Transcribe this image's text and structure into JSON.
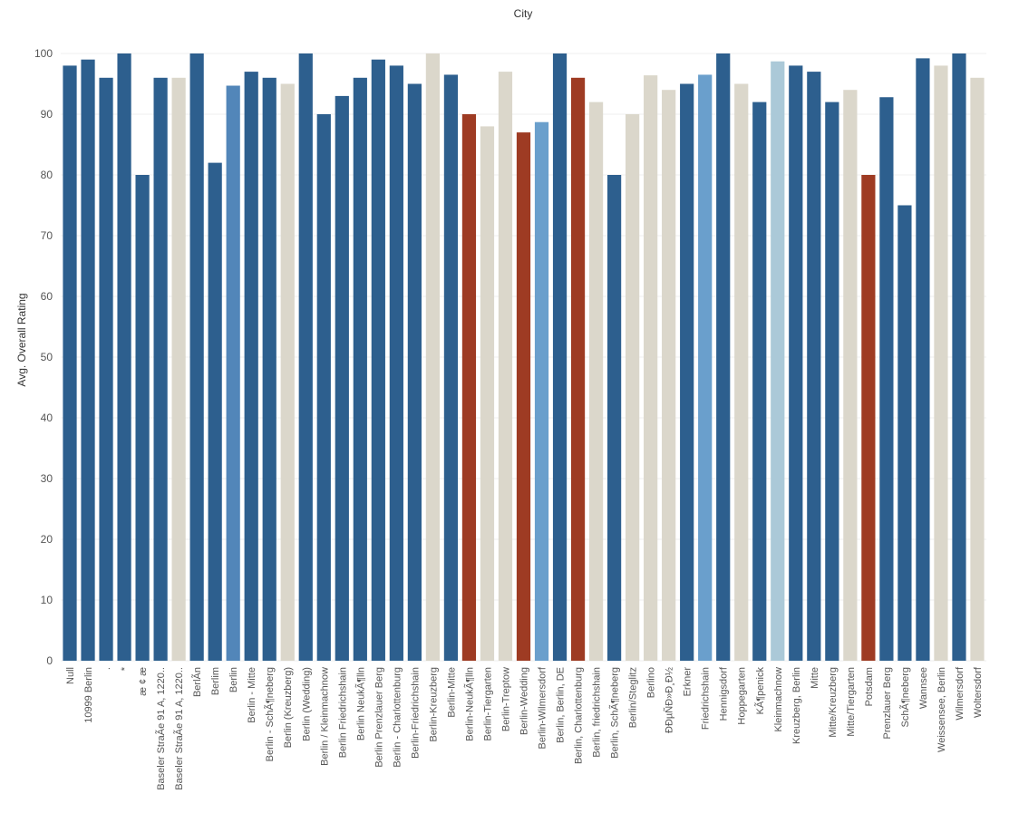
{
  "chart_data": {
    "type": "bar",
    "title": "City",
    "xlabel": "",
    "ylabel": "Avg. Overall Rating",
    "ylim": [
      0,
      100
    ],
    "yticks": [
      0,
      10,
      20,
      30,
      40,
      50,
      60,
      70,
      80,
      90,
      100
    ],
    "grid": true,
    "colors": {
      "dark_blue": "#2d5f8e",
      "mid_blue": "#5286b9",
      "light_blue": "#6a9fcc",
      "pale_blue": "#abc9d8",
      "beige": "#dbd7cb",
      "rust": "#9e3b23"
    },
    "bars": [
      {
        "label": "Null",
        "value": 98,
        "color": "dark_blue"
      },
      {
        "label": "10999 Berlin",
        "value": 99,
        "color": "dark_blue"
      },
      {
        "label": ".",
        "value": 96,
        "color": "dark_blue"
      },
      {
        "label": "*",
        "value": 100,
        "color": "dark_blue"
      },
      {
        "label": "æ ¢ æ",
        "value": 80,
        "color": "dark_blue"
      },
      {
        "label": "Baseler StraÃe 91 A, 1220..",
        "value": 96,
        "color": "dark_blue"
      },
      {
        "label": "Baseler StraÃe 91 A, 1220..",
        "value": 96,
        "color": "beige"
      },
      {
        "label": "BerlÃn",
        "value": 100,
        "color": "dark_blue"
      },
      {
        "label": "Berlim",
        "value": 82,
        "color": "dark_blue"
      },
      {
        "label": "Berlin",
        "value": 94.7,
        "color": "mid_blue"
      },
      {
        "label": "Berlin - Mitte",
        "value": 97,
        "color": "dark_blue"
      },
      {
        "label": "Berlin - SchÃ¶neberg",
        "value": 96,
        "color": "dark_blue"
      },
      {
        "label": "Berlin (Kreuzberg)",
        "value": 95,
        "color": "beige"
      },
      {
        "label": "Berlin (Wedding)",
        "value": 100,
        "color": "dark_blue"
      },
      {
        "label": "Berlin / Kleinmachnow",
        "value": 90,
        "color": "dark_blue"
      },
      {
        "label": "Berlin Friedrichshain",
        "value": 93,
        "color": "dark_blue"
      },
      {
        "label": "Berlin NeukÃ¶lln",
        "value": 96,
        "color": "dark_blue"
      },
      {
        "label": "Berlin Prenzlauer Berg",
        "value": 99,
        "color": "dark_blue"
      },
      {
        "label": "Berlin - Charlottenburg",
        "value": 98,
        "color": "dark_blue"
      },
      {
        "label": "Berlin-Friedrichshain",
        "value": 95,
        "color": "dark_blue"
      },
      {
        "label": "Berlin-Kreuzberg",
        "value": 100,
        "color": "beige"
      },
      {
        "label": "Berlin-Mitte",
        "value": 96.5,
        "color": "dark_blue"
      },
      {
        "label": "Berlin-NeukÃ¶lln",
        "value": 90,
        "color": "rust"
      },
      {
        "label": "Berlin-Tiergarten",
        "value": 88,
        "color": "beige"
      },
      {
        "label": "Berlin-Treptow",
        "value": 97,
        "color": "beige"
      },
      {
        "label": "Berlin-Wedding",
        "value": 87,
        "color": "rust"
      },
      {
        "label": "Berlin-Wilmersdorf",
        "value": 88.7,
        "color": "light_blue"
      },
      {
        "label": "Berlin, Berlin, DE",
        "value": 100,
        "color": "dark_blue"
      },
      {
        "label": "Berlin, Charlottenburg",
        "value": 96,
        "color": "rust"
      },
      {
        "label": "Berlin, friedrichshain",
        "value": 92,
        "color": "beige"
      },
      {
        "label": "Berlin, SchÃ¶neberg",
        "value": 80,
        "color": "dark_blue"
      },
      {
        "label": "Berlin/Steglitz",
        "value": 90,
        "color": "beige"
      },
      {
        "label": "Berlino",
        "value": 96.4,
        "color": "beige"
      },
      {
        "label": "ÐÐµÑÐ»Ð¸Ð½",
        "value": 94,
        "color": "beige"
      },
      {
        "label": "Erkner",
        "value": 95,
        "color": "dark_blue"
      },
      {
        "label": "Friedrichshain",
        "value": 96.5,
        "color": "light_blue"
      },
      {
        "label": "Hennigsdorf",
        "value": 100,
        "color": "dark_blue"
      },
      {
        "label": "Hoppegarten",
        "value": 95,
        "color": "beige"
      },
      {
        "label": "KÃ¶penick",
        "value": 92,
        "color": "dark_blue"
      },
      {
        "label": "Kleinmachnow",
        "value": 98.7,
        "color": "pale_blue"
      },
      {
        "label": "Kreuzberg, Berlin",
        "value": 98,
        "color": "dark_blue"
      },
      {
        "label": "Mitte",
        "value": 97,
        "color": "dark_blue"
      },
      {
        "label": "Mitte/Kreuzberg",
        "value": 92,
        "color": "dark_blue"
      },
      {
        "label": "Mitte/Tiergarten",
        "value": 94,
        "color": "beige"
      },
      {
        "label": "Potsdam",
        "value": 80,
        "color": "rust"
      },
      {
        "label": "Prenzlauer Berg",
        "value": 92.8,
        "color": "dark_blue"
      },
      {
        "label": "SchÃ¶neberg",
        "value": 75,
        "color": "dark_blue"
      },
      {
        "label": "Wannsee",
        "value": 99.2,
        "color": "dark_blue"
      },
      {
        "label": "Weissensee, Berlin",
        "value": 98,
        "color": "beige"
      },
      {
        "label": "Wilmersdorf",
        "value": 100,
        "color": "dark_blue"
      },
      {
        "label": "Woltersdorf",
        "value": 96,
        "color": "beige"
      }
    ]
  }
}
